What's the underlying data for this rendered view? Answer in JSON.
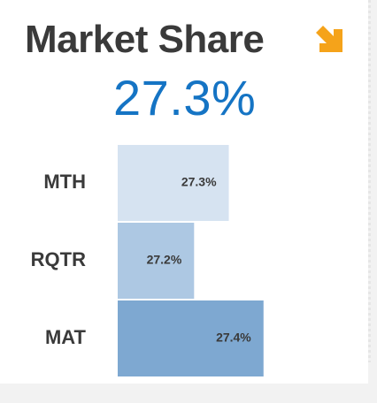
{
  "header": {
    "title": "Market Share",
    "kpi_value": "27.3%",
    "trend_icon": "arrow-down-right-icon",
    "trend_color": "#f5a31a",
    "kpi_color": "#1574c4"
  },
  "chart_data": {
    "type": "bar",
    "orientation": "horizontal",
    "categories": [
      "MTH",
      "RQTR",
      "MAT"
    ],
    "values": [
      27.3,
      27.2,
      27.4
    ],
    "value_labels": [
      "27.3%",
      "27.2%",
      "27.4%"
    ],
    "colors": [
      "#d6e3f1",
      "#adc8e3",
      "#7ea8d1"
    ],
    "xlim": [
      26.98,
      27.5
    ],
    "title": "Market Share",
    "xlabel": "",
    "ylabel": "",
    "grid": false,
    "legend": "none"
  }
}
